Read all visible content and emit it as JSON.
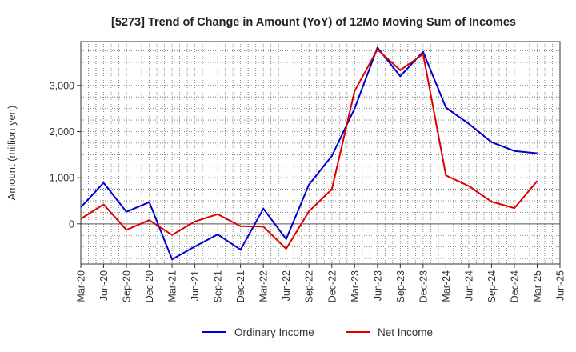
{
  "chart_data": {
    "type": "line",
    "title": "[5273]  Trend of Change in Amount (YoY) of 12Mo Moving Sum of Incomes",
    "xlabel": "",
    "ylabel": "Amount (million yen)",
    "categories": [
      "Mar-20",
      "Jun-20",
      "Sep-20",
      "Dec-20",
      "Mar-21",
      "Jun-21",
      "Sep-21",
      "Dec-21",
      "Mar-22",
      "Jun-22",
      "Sep-22",
      "Dec-22",
      "Mar-23",
      "Jun-23",
      "Sep-23",
      "Dec-23",
      "Mar-24",
      "Jun-24",
      "Sep-24",
      "Dec-24",
      "Mar-25",
      "Jun-25"
    ],
    "ylim": [
      -870,
      3950
    ],
    "yticks": [
      0,
      1000,
      2000,
      3000
    ],
    "ytick_labels": [
      "0",
      "1,000",
      "2,000",
      "3,000"
    ],
    "grid": true,
    "legend_position": "bottom",
    "series": [
      {
        "name": "Ordinary Income",
        "color": "#0000cc",
        "values": [
          360,
          890,
          260,
          470,
          -770,
          -490,
          -230,
          -560,
          330,
          -330,
          850,
          1470,
          2500,
          3820,
          3200,
          3730,
          2520,
          2170,
          1770,
          1580,
          1530,
          null
        ]
      },
      {
        "name": "Net Income",
        "color": "#dd0000",
        "values": [
          110,
          420,
          -130,
          80,
          -240,
          50,
          210,
          -50,
          -60,
          -540,
          270,
          750,
          2880,
          3780,
          3330,
          3680,
          1050,
          820,
          480,
          340,
          930,
          null
        ]
      }
    ]
  }
}
